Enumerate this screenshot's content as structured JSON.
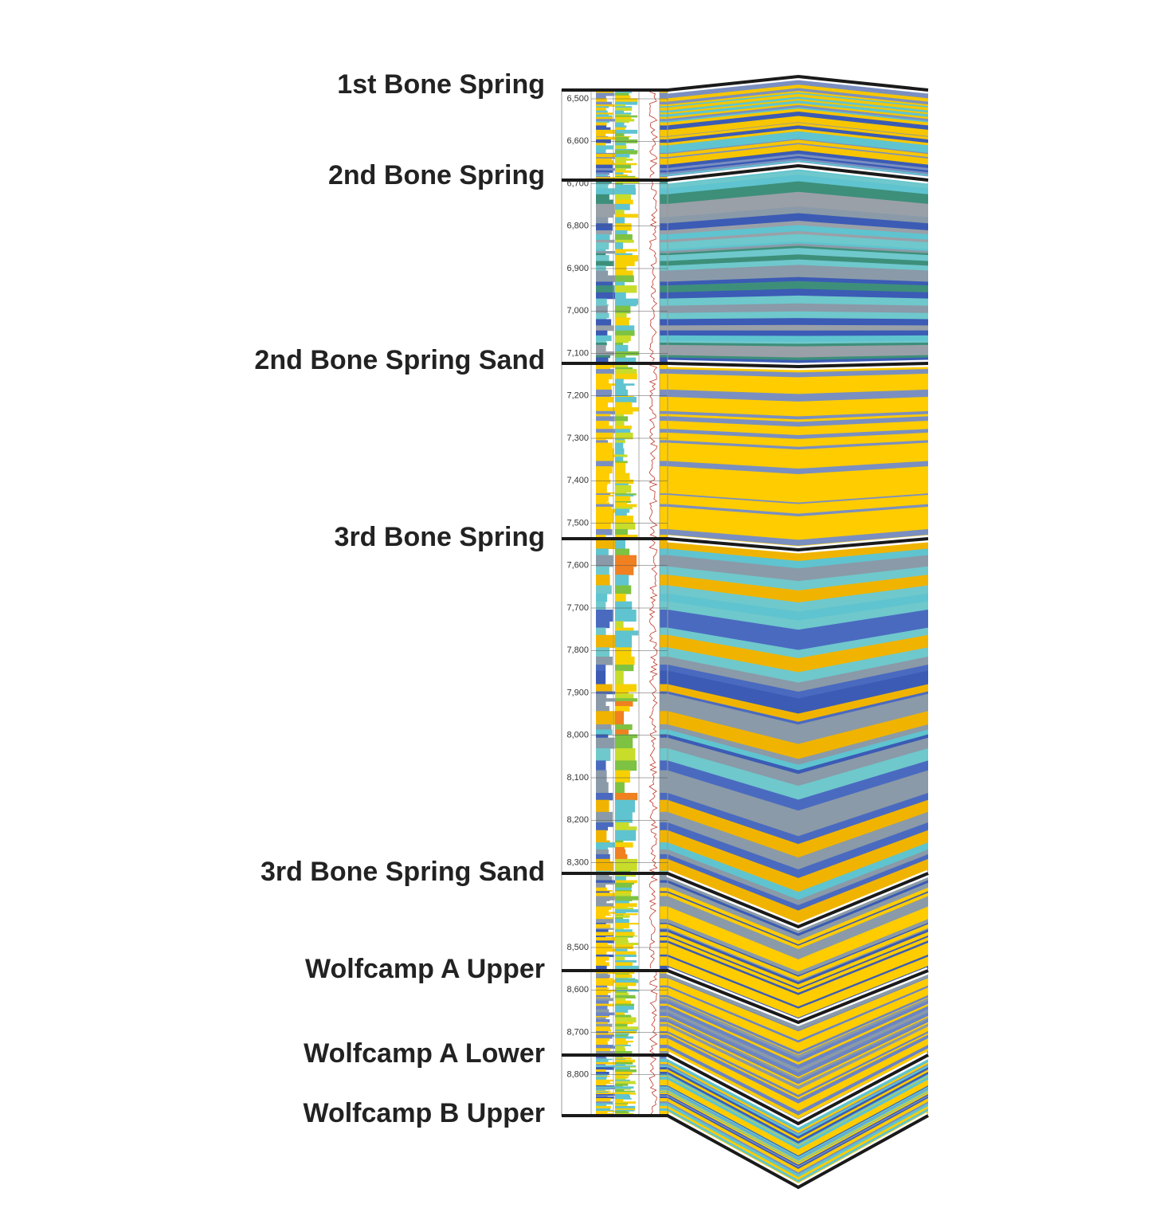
{
  "formations": [
    "1st Bone Spring",
    "2nd Bone Spring",
    "2nd Bone Spring Sand",
    "3rd Bone Spring",
    "3rd Bone Spring Sand",
    "Wolfcamp A Upper",
    "Wolfcamp A Lower",
    "Wolfcamp B Upper"
  ],
  "depth_ticks": [
    {
      "value": 6500,
      "label": "6,500"
    },
    {
      "value": 6600,
      "label": "6,600"
    },
    {
      "value": 6700,
      "label": "6,700"
    },
    {
      "value": 6800,
      "label": "6,800"
    },
    {
      "value": 6900,
      "label": "6,900"
    },
    {
      "value": 7000,
      "label": "7,000"
    },
    {
      "value": 7100,
      "label": "7,100"
    },
    {
      "value": 7200,
      "label": "7,200"
    },
    {
      "value": 7300,
      "label": "7,300"
    },
    {
      "value": 7400,
      "label": "7,400"
    },
    {
      "value": 7500,
      "label": "7,500"
    },
    {
      "value": 7600,
      "label": "7,600"
    },
    {
      "value": 7700,
      "label": "7,700"
    },
    {
      "value": 7800,
      "label": "7,800"
    },
    {
      "value": 7900,
      "label": "7,900"
    },
    {
      "value": 8000,
      "label": "8,000"
    },
    {
      "value": 8100,
      "label": "8,100"
    },
    {
      "value": 8200,
      "label": "8,200"
    },
    {
      "value": 8300,
      "label": "8,300"
    },
    {
      "value": 8500,
      "label": "8,500"
    },
    {
      "value": 8600,
      "label": "8,600"
    },
    {
      "value": 8700,
      "label": "8,700"
    },
    {
      "value": 8800,
      "label": "8,800"
    }
  ]
}
